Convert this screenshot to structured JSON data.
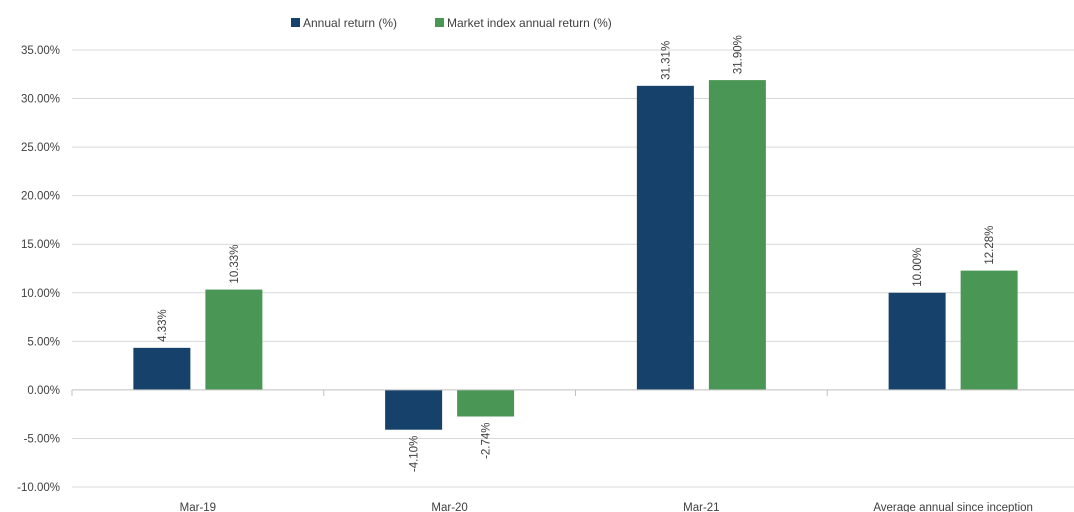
{
  "chart_data": {
    "type": "bar",
    "categories": [
      "Mar-19",
      "Mar-20",
      "Mar-21",
      "Average annual since inception"
    ],
    "series": [
      {
        "name": "Annual return (%)",
        "values": [
          4.33,
          -4.1,
          31.31,
          10.0
        ],
        "labels": [
          "4.33%",
          "-4.10%",
          "31.31%",
          "10.00%"
        ],
        "color": "#15416b"
      },
      {
        "name": "Market index annual return (%)",
        "values": [
          10.33,
          -2.74,
          31.9,
          12.28
        ],
        "labels": [
          "10.33%",
          "-2.74%",
          "31.90%",
          "12.28%"
        ],
        "color": "#4a9654"
      }
    ],
    "ylim": [
      -10,
      35
    ],
    "yticks": [
      35,
      30,
      25,
      20,
      15,
      10,
      5,
      0,
      -5,
      -10
    ],
    "ytick_labels": [
      "35.00%",
      "30.00%",
      "25.00%",
      "20.00%",
      "15.00%",
      "10.00%",
      "5.00%",
      "0.00%",
      "-5.00%",
      "-10.00%"
    ],
    "grid": true,
    "legend_position": "top",
    "title": "",
    "xlabel": "",
    "ylabel": ""
  }
}
